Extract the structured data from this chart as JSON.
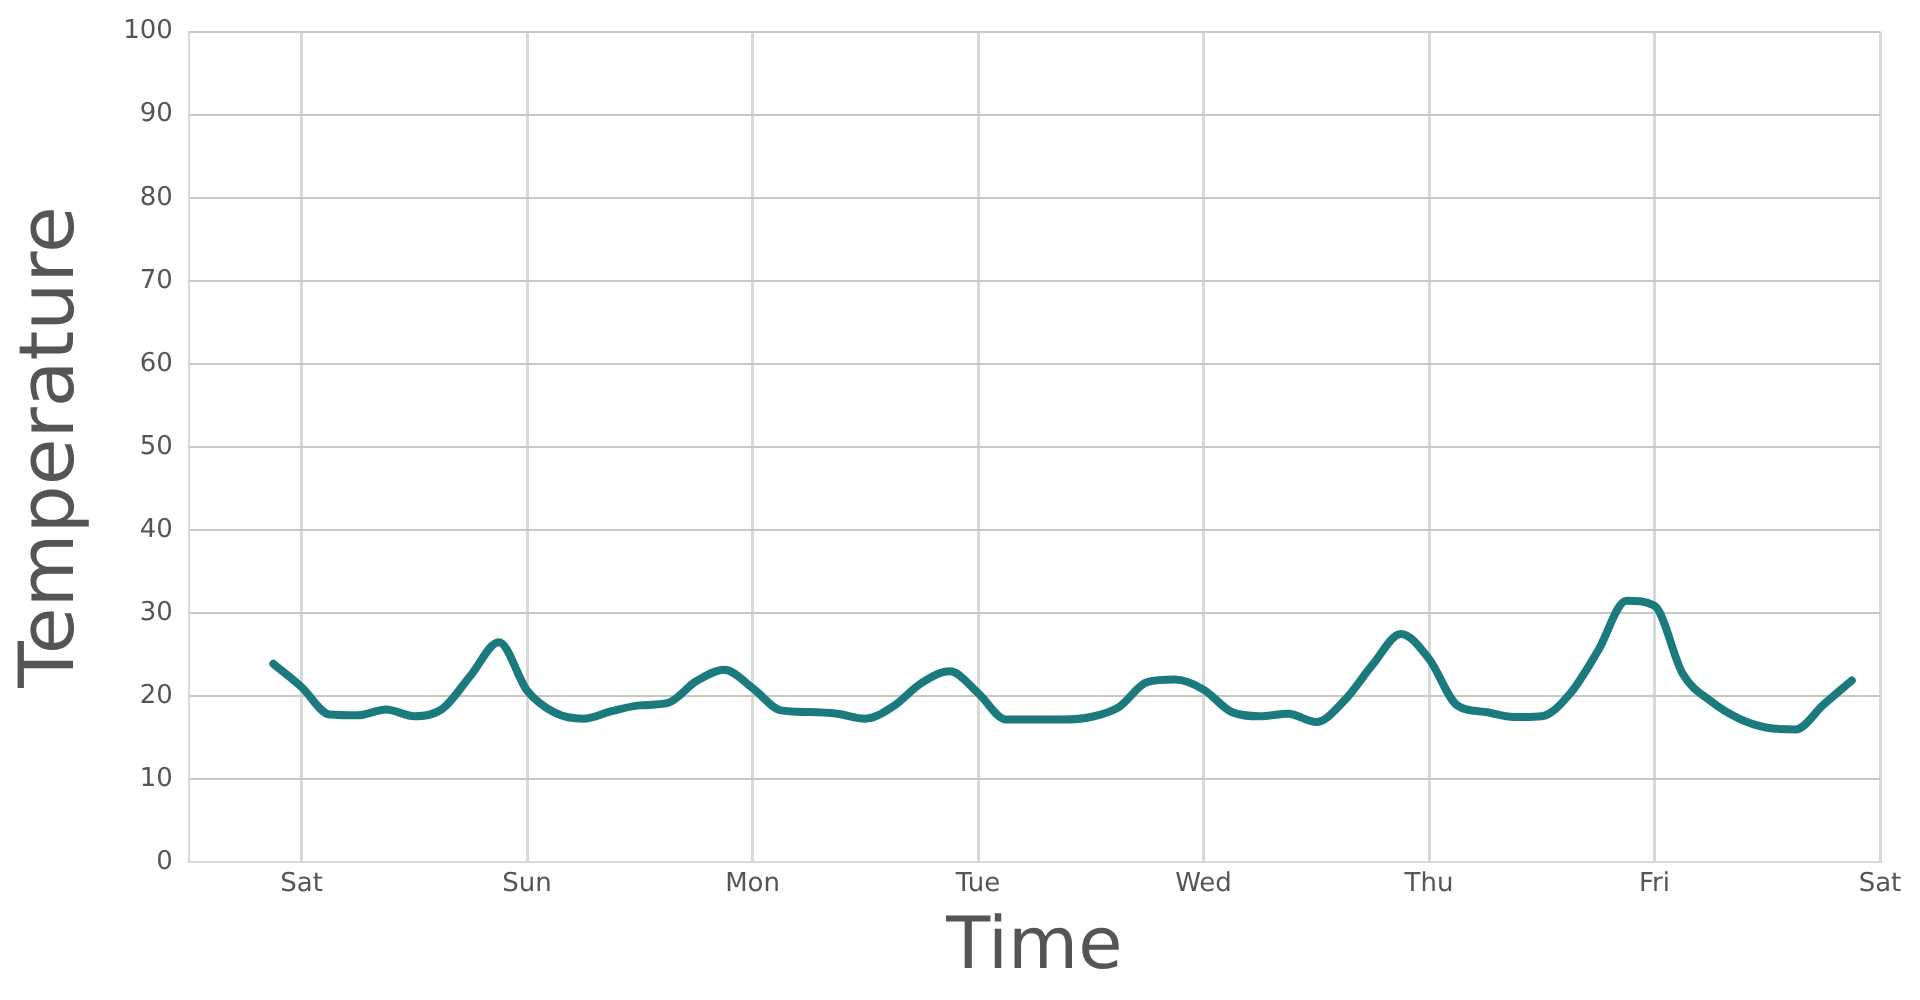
{
  "chart_data": {
    "type": "line",
    "xlabel": "Time",
    "ylabel": "Temperature",
    "categories": [
      null,
      null,
      null,
      null,
      "Sat",
      null,
      null,
      null,
      null,
      null,
      null,
      null,
      "Sun",
      null,
      null,
      null,
      null,
      null,
      null,
      null,
      "Mon",
      null,
      null,
      null,
      null,
      null,
      null,
      null,
      "Tue",
      null,
      null,
      null,
      null,
      null,
      null,
      null,
      "Wed",
      null,
      null,
      null,
      null,
      null,
      null,
      null,
      "Thu",
      null,
      null,
      null,
      null,
      null,
      null,
      null,
      "Fri",
      null,
      null,
      null,
      null,
      null,
      null,
      null,
      "Sat"
    ],
    "ylim": [
      0,
      100
    ],
    "yticks": [
      0,
      10,
      20,
      30,
      40,
      50,
      60,
      70,
      80,
      90,
      100
    ],
    "grid": true,
    "marker": "none",
    "line_style": "solid",
    "series": [
      {
        "color": "#1a7a7e",
        "values": [
          null,
          null,
          null,
          23.9,
          21.1,
          17.8,
          17.7,
          18.4,
          17.6,
          18.5,
          22.5,
          26.5,
          20.7,
          18,
          17.3,
          18.2,
          18.9,
          19.2,
          21.8,
          23.2,
          21,
          18.3,
          18.1,
          17.9,
          17.3,
          18.8,
          21.6,
          23,
          20.4,
          17.2,
          17.2,
          17.2,
          17.5,
          18.7,
          21.7,
          22,
          20.8,
          18.1,
          17.6,
          17.9,
          16.9,
          19.5,
          23.8,
          27.5,
          24.5,
          18.9,
          18.1,
          17.5,
          17.6,
          20.3,
          25.5,
          31.5,
          30.9,
          22.7,
          19.4,
          17.3,
          16.2,
          16,
          19,
          21.9,
          null
        ]
      }
    ]
  }
}
